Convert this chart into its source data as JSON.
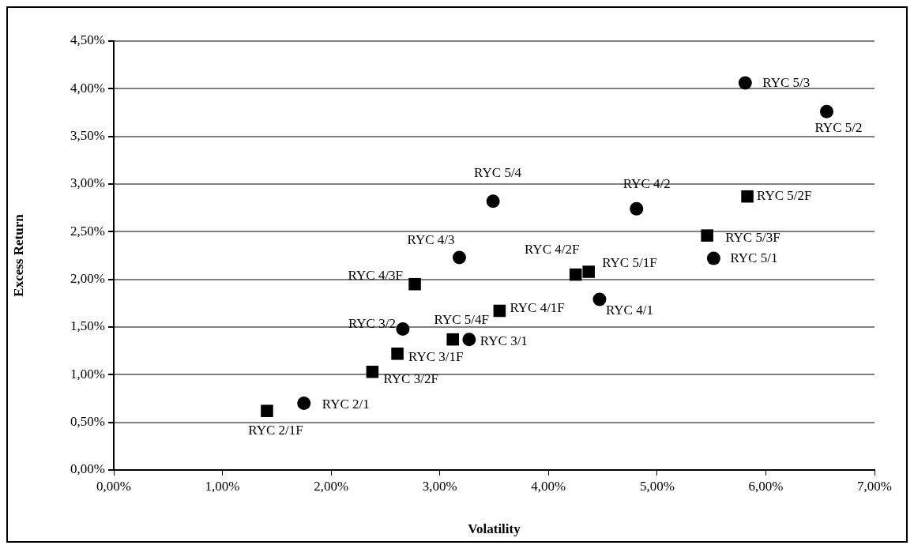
{
  "chart_data": {
    "type": "scatter",
    "xlabel": "Volatility",
    "ylabel": "Excess Return",
    "series": [
      {
        "marker": "circle",
        "color": "#000000",
        "x": [
          5.81,
          6.56,
          3.49,
          4.81,
          5.52,
          3.18,
          4.47,
          3.27,
          2.66,
          1.75
        ],
        "values": [
          4.06,
          3.76,
          2.82,
          2.74,
          2.22,
          2.23,
          1.79,
          1.37,
          1.48,
          0.7
        ]
      },
      {
        "marker": "square",
        "color": "#000000",
        "x": [
          5.83,
          5.46,
          4.25,
          4.37,
          3.55,
          3.12,
          2.77,
          2.61,
          2.38,
          1.41
        ],
        "values": [
          2.87,
          2.46,
          2.05,
          2.08,
          1.67,
          1.37,
          1.95,
          1.22,
          1.03,
          0.62
        ]
      }
    ],
    "xlim": [
      0,
      7
    ],
    "ylim": [
      0,
      4.5
    ],
    "xticks": [
      {
        "value": 0,
        "label": "0,00%"
      },
      {
        "value": 1,
        "label": "1,00%"
      },
      {
        "value": 2,
        "label": "2,00%"
      },
      {
        "value": 3,
        "label": "3,00%"
      },
      {
        "value": 4,
        "label": "4,00%"
      },
      {
        "value": 5,
        "label": "5,00%"
      },
      {
        "value": 6,
        "label": "6,00%"
      },
      {
        "value": 7,
        "label": "7,00%"
      }
    ],
    "yticks": [
      {
        "value": 0,
        "label": "0,00%"
      },
      {
        "value": 0.5,
        "label": "0,50%"
      },
      {
        "value": 1,
        "label": "1,00%"
      },
      {
        "value": 1.5,
        "label": "1,50%"
      },
      {
        "value": 2,
        "label": "2,00%"
      },
      {
        "value": 2.5,
        "label": "2,50%"
      },
      {
        "value": 3,
        "label": "3,00%"
      },
      {
        "value": 3.5,
        "label": "3,50%"
      },
      {
        "value": 4,
        "label": "4,00%"
      },
      {
        "value": 4.5,
        "label": "4,50%"
      }
    ],
    "grid": "y",
    "legend": false,
    "annotations": [
      {
        "text": "RYC 5/3",
        "x": 5.81,
        "y": 4.06
      },
      {
        "text": "RYC 5/2",
        "x": 6.56,
        "y": 3.76
      },
      {
        "text": "RYC 5/4",
        "x": 3.49,
        "y": 2.82
      },
      {
        "text": "RYC 4/2",
        "x": 4.81,
        "y": 2.74
      },
      {
        "text": "RYC 5/1",
        "x": 5.52,
        "y": 2.22
      },
      {
        "text": "RYC 4/3",
        "x": 3.18,
        "y": 2.23
      },
      {
        "text": "RYC 4/1",
        "x": 4.47,
        "y": 1.79
      },
      {
        "text": "RYC 3/1",
        "x": 3.27,
        "y": 1.37
      },
      {
        "text": "RYC 3/2",
        "x": 2.66,
        "y": 1.48
      },
      {
        "text": "RYC 2/1",
        "x": 1.75,
        "y": 0.7
      },
      {
        "text": "RYC 5/2F",
        "x": 5.83,
        "y": 2.87
      },
      {
        "text": "RYC 5/3F",
        "x": 5.46,
        "y": 2.46
      },
      {
        "text": "RYC 4/2F",
        "x": 4.25,
        "y": 2.05
      },
      {
        "text": "RYC 5/1F",
        "x": 4.37,
        "y": 2.08
      },
      {
        "text": "RYC 4/1F",
        "x": 3.55,
        "y": 1.67
      },
      {
        "text": "RYC 5/4F",
        "x": 3.12,
        "y": 1.37
      },
      {
        "text": "RYC 4/3F",
        "x": 2.77,
        "y": 1.95
      },
      {
        "text": "RYC 3/1F",
        "x": 2.61,
        "y": 1.22
      },
      {
        "text": "RYC 3/2F",
        "x": 2.38,
        "y": 1.03
      },
      {
        "text": "RYC 2/1F",
        "x": 1.41,
        "y": 0.62
      }
    ]
  }
}
